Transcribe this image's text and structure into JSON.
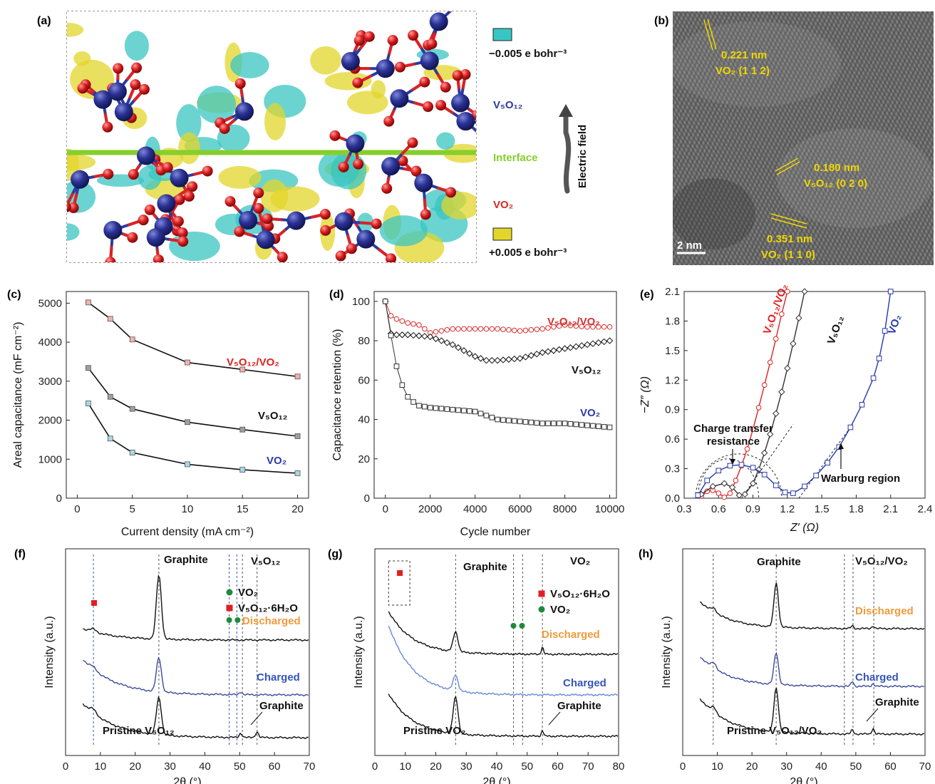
{
  "panel_labels": [
    "(a)",
    "(b)",
    "(c)",
    "(d)",
    "(e)",
    "(f)",
    "(g)",
    "(h)"
  ],
  "panel_a": {
    "legend_neg": "−0.005 e bohr⁻³",
    "legend_pos": "+0.005 e bohr⁻³",
    "label_top": "V₅O₁₂",
    "label_interface": "Interface",
    "label_bottom": "VO₂",
    "electric_field": "Electric field",
    "colors": {
      "cyan": "#39c6c2",
      "yellow": "#e3d62a",
      "interface": "#86cf2b",
      "blue_label": "#2e3a9f",
      "red_label": "#d82a20"
    }
  },
  "panel_b": {
    "scale_bar": "2 nm",
    "annotations": [
      {
        "d": "0.221 nm",
        "plane": "VO₂ (1 1 2)"
      },
      {
        "d": "0.180 nm",
        "plane": "V₅O₁₂ (0 2 0)"
      },
      {
        "d": "0.351 nm",
        "plane": "VO₂ (1 1 0)"
      }
    ],
    "annotation_color": "#f0d800"
  },
  "chart_data": [
    {
      "panel": "c",
      "type": "line",
      "xlabel": "Current density (mA cm⁻²)",
      "ylabel": "Areal capacitance (mF cm⁻²)",
      "xlim": [
        -1,
        21
      ],
      "ylim": [
        0,
        5300
      ],
      "xticks": [
        0,
        5,
        10,
        15,
        20
      ],
      "yticks": [
        0,
        1000,
        2000,
        3000,
        4000,
        5000
      ],
      "x": [
        1,
        3,
        5,
        10,
        15,
        20
      ],
      "series": [
        {
          "name": "V₅O₁₂/VO₂",
          "color": "#e05050",
          "fill": "#f4b0b0",
          "values": [
            5020,
            4600,
            4070,
            3480,
            3300,
            3120
          ]
        },
        {
          "name": "V₅O₁₂",
          "color": "#111111",
          "fill": "#a0a0a0",
          "values": [
            3340,
            2600,
            2290,
            1950,
            1760,
            1590
          ]
        },
        {
          "name": "VO₂",
          "color": "#3040b0",
          "fill": "#a8d8e8",
          "values": [
            2430,
            1530,
            1170,
            870,
            730,
            640
          ]
        }
      ]
    },
    {
      "panel": "d",
      "type": "line",
      "xlabel": "Cycle number",
      "ylabel": "Capacitance retention (%)",
      "xlim": [
        -500,
        10300
      ],
      "ylim": [
        0,
        105
      ],
      "xticks": [
        0,
        2000,
        4000,
        6000,
        8000,
        10000
      ],
      "yticks": [
        0,
        20,
        40,
        60,
        80,
        100
      ],
      "series": [
        {
          "name": "V₅O₁₂/VO₂",
          "color": "#d83030",
          "marker": "circle",
          "values": [
            [
              0,
              100
            ],
            [
              200,
              93
            ],
            [
              500,
              91
            ],
            [
              1000,
              89
            ],
            [
              1500,
              88
            ],
            [
              2000,
              84
            ],
            [
              2500,
              85
            ],
            [
              3000,
              86
            ],
            [
              4000,
              86
            ],
            [
              5000,
              86
            ],
            [
              6000,
              85
            ],
            [
              7000,
              86
            ],
            [
              8000,
              88
            ],
            [
              9000,
              87
            ],
            [
              10000,
              87
            ]
          ]
        },
        {
          "name": "V₅O₁₂",
          "color": "#111111",
          "marker": "diamond",
          "values": [
            [
              0,
              100
            ],
            [
              100,
              84
            ],
            [
              500,
              83
            ],
            [
              1000,
              83
            ],
            [
              2000,
              82
            ],
            [
              3000,
              78
            ],
            [
              4000,
              72
            ],
            [
              4500,
              70
            ],
            [
              5000,
              70
            ],
            [
              6000,
              71
            ],
            [
              7000,
              74
            ],
            [
              8000,
              76
            ],
            [
              9000,
              78
            ],
            [
              10000,
              80
            ]
          ]
        },
        {
          "name": "VO₂",
          "color": "#333333",
          "marker": "square",
          "values": [
            [
              0,
              100
            ],
            [
              150,
              90
            ],
            [
              300,
              79
            ],
            [
              500,
              67
            ],
            [
              700,
              59
            ],
            [
              900,
              53
            ],
            [
              1100,
              50
            ],
            [
              1500,
              47
            ],
            [
              2000,
              46
            ],
            [
              3000,
              45
            ],
            [
              4000,
              44
            ],
            [
              5000,
              40
            ],
            [
              6000,
              39
            ],
            [
              7000,
              38
            ],
            [
              8000,
              38
            ],
            [
              9000,
              37
            ],
            [
              10000,
              36
            ]
          ]
        }
      ]
    },
    {
      "panel": "e",
      "type": "scatter",
      "xlabel": "Z′ (Ω)",
      "ylabel": "−Z″ (Ω)",
      "xlim": [
        0.3,
        2.4
      ],
      "ylim": [
        0,
        2.1
      ],
      "xticks": [
        0.3,
        0.6,
        0.9,
        1.2,
        1.5,
        1.8,
        2.1,
        2.4
      ],
      "yticks": [
        0.0,
        0.3,
        0.6,
        0.9,
        1.2,
        1.5,
        1.8,
        2.1
      ],
      "annotations": [
        "Charge transfer",
        "resistance",
        "Warburg region"
      ],
      "series": [
        {
          "name": "V₅O₁₂/VO₂",
          "color": "#e02020",
          "marker": "circle",
          "values": [
            [
              0.45,
              0.02
            ],
            [
              0.5,
              0.07
            ],
            [
              0.55,
              0.08
            ],
            [
              0.6,
              0.05
            ],
            [
              0.65,
              0.01
            ],
            [
              0.7,
              0.05
            ],
            [
              0.75,
              0.18
            ],
            [
              0.8,
              0.33
            ],
            [
              0.85,
              0.5
            ],
            [
              0.9,
              0.7
            ],
            [
              0.95,
              0.92
            ],
            [
              1.0,
              1.15
            ],
            [
              1.05,
              1.38
            ],
            [
              1.1,
              1.62
            ],
            [
              1.15,
              1.87
            ],
            [
              1.2,
              2.1
            ]
          ]
        },
        {
          "name": "V₅O₁₂",
          "color": "#333333",
          "marker": "diamond",
          "values": [
            [
              0.45,
              0.04
            ],
            [
              0.55,
              0.12
            ],
            [
              0.65,
              0.15
            ],
            [
              0.72,
              0.11
            ],
            [
              0.78,
              0.03
            ],
            [
              0.83,
              0.04
            ],
            [
              0.9,
              0.15
            ],
            [
              0.95,
              0.29
            ],
            [
              1.0,
              0.46
            ],
            [
              1.05,
              0.65
            ],
            [
              1.1,
              0.86
            ],
            [
              1.15,
              1.08
            ],
            [
              1.2,
              1.32
            ],
            [
              1.25,
              1.57
            ],
            [
              1.3,
              1.83
            ],
            [
              1.35,
              2.1
            ]
          ]
        },
        {
          "name": "VO₂",
          "color": "#2838a8",
          "marker": "square",
          "values": [
            [
              0.42,
              0.03
            ],
            [
              0.5,
              0.18
            ],
            [
              0.6,
              0.28
            ],
            [
              0.7,
              0.33
            ],
            [
              0.8,
              0.34
            ],
            [
              0.9,
              0.31
            ],
            [
              1.0,
              0.24
            ],
            [
              1.1,
              0.13
            ],
            [
              1.18,
              0.06
            ],
            [
              1.25,
              0.05
            ],
            [
              1.35,
              0.12
            ],
            [
              1.45,
              0.23
            ],
            [
              1.55,
              0.36
            ],
            [
              1.65,
              0.52
            ],
            [
              1.75,
              0.72
            ],
            [
              1.85,
              0.95
            ],
            [
              1.95,
              1.22
            ],
            [
              2.0,
              1.42
            ],
            [
              2.05,
              1.7
            ],
            [
              2.1,
              2.1
            ]
          ]
        }
      ]
    },
    {
      "panel": "f",
      "type": "line",
      "title": "V₅O₁₂",
      "xlabel": "2θ (°)",
      "ylabel": "Intensity (a.u.)",
      "xlim": [
        0,
        70
      ],
      "xticks": [
        0,
        10,
        20,
        30,
        40,
        50,
        60,
        70
      ],
      "legend": [
        {
          "label": "VO₂",
          "symbol": "circle",
          "color": "#1e8a3a"
        },
        {
          "label": "V₅O₁₂·6H₂O",
          "symbol": "square",
          "color": "#e02020"
        }
      ],
      "peak_labels": [
        "Graphite",
        "Graphite"
      ],
      "series": [
        {
          "name": "Discharged",
          "color": "#111111",
          "label_color": "#f39a3a"
        },
        {
          "name": "Charged",
          "color": "#3a4a9a",
          "label_color": "#3355bb"
        },
        {
          "name": "Pristine V₅O₁₂",
          "color": "#111111",
          "label_color": "#111111"
        }
      ]
    },
    {
      "panel": "g",
      "type": "line",
      "title": "VO₂",
      "xlabel": "2θ (°)",
      "ylabel": "Intensity (a.u.)",
      "xlim": [
        0,
        80
      ],
      "xticks": [
        0,
        10,
        20,
        30,
        40,
        50,
        60,
        70,
        80
      ],
      "legend": [
        {
          "label": "V₅O₁₂·6H₂O",
          "symbol": "square",
          "color": "#e02020"
        },
        {
          "label": "VO₂",
          "symbol": "circle",
          "color": "#1e8a3a"
        }
      ],
      "peak_labels": [
        "Graphite",
        "Graphite"
      ],
      "series": [
        {
          "name": "Discharged",
          "color": "#111111",
          "label_color": "#f39a3a"
        },
        {
          "name": "Charged",
          "color": "#6688dd",
          "label_color": "#3355bb"
        },
        {
          "name": "Pristine VO₂",
          "color": "#111111",
          "label_color": "#111111"
        }
      ]
    },
    {
      "panel": "h",
      "type": "line",
      "title": "V₅O₁₂/VO₂",
      "xlabel": "2θ (°)",
      "ylabel": "Intensity (a.u.)",
      "xlim": [
        0,
        70
      ],
      "xticks": [
        0,
        10,
        20,
        30,
        40,
        50,
        60,
        70
      ],
      "peak_labels": [
        "Graphite",
        "Graphite"
      ],
      "series": [
        {
          "name": "Discharged",
          "color": "#111111",
          "label_color": "#f39a3a"
        },
        {
          "name": "Charged",
          "color": "#3a4a9a",
          "label_color": "#3355bb"
        },
        {
          "name": "Pristine V₅O₁₂/VO₂",
          "color": "#111111",
          "label_color": "#111111"
        }
      ]
    }
  ]
}
